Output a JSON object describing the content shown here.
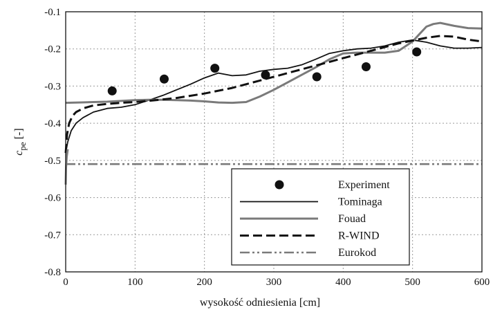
{
  "chart_data": {
    "type": "line",
    "xlabel": "wysokość odniesienia [cm]",
    "ylabel_main": "c",
    "ylabel_sub": "pe",
    "ylabel_unit": " [-]",
    "xlim": [
      0,
      600
    ],
    "ylim": [
      -0.8,
      -0.1
    ],
    "xticks": [
      0,
      100,
      200,
      300,
      400,
      500,
      600
    ],
    "yticks": [
      -0.8,
      -0.7,
      -0.6,
      -0.5,
      -0.4,
      -0.3,
      -0.2,
      -0.1
    ],
    "grid": true,
    "legend_position": "bottom-right",
    "series": [
      {
        "name": "Experiment",
        "kind": "scatter",
        "color": "#111111",
        "x": [
          67,
          142,
          215,
          288,
          362,
          433,
          506
        ],
        "y": [
          -0.313,
          -0.281,
          -0.252,
          -0.27,
          -0.275,
          -0.248,
          -0.208
        ]
      },
      {
        "name": "Tominaga",
        "kind": "line",
        "style": "solid",
        "color": "#111111",
        "width": 1.8,
        "x": [
          0,
          3,
          8,
          15,
          25,
          40,
          60,
          80,
          100,
          120,
          140,
          160,
          180,
          200,
          220,
          240,
          260,
          280,
          300,
          320,
          340,
          360,
          380,
          400,
          420,
          440,
          460,
          480,
          500,
          520,
          540,
          560,
          580,
          600
        ],
        "y": [
          -0.48,
          -0.45,
          -0.42,
          -0.4,
          -0.385,
          -0.37,
          -0.36,
          -0.357,
          -0.35,
          -0.338,
          -0.325,
          -0.31,
          -0.295,
          -0.278,
          -0.265,
          -0.272,
          -0.27,
          -0.26,
          -0.255,
          -0.252,
          -0.243,
          -0.228,
          -0.212,
          -0.205,
          -0.2,
          -0.198,
          -0.192,
          -0.182,
          -0.176,
          -0.182,
          -0.192,
          -0.198,
          -0.198,
          -0.196
        ]
      },
      {
        "name": "Fouad",
        "kind": "line",
        "style": "solid",
        "color": "#7a7a7a",
        "width": 3,
        "x": [
          0,
          20,
          40,
          60,
          80,
          100,
          120,
          140,
          160,
          180,
          200,
          220,
          240,
          260,
          280,
          300,
          320,
          340,
          360,
          380,
          400,
          420,
          440,
          460,
          480,
          500,
          510,
          520,
          530,
          540,
          560,
          580,
          600
        ],
        "y": [
          -0.345,
          -0.344,
          -0.343,
          -0.342,
          -0.34,
          -0.338,
          -0.337,
          -0.337,
          -0.338,
          -0.339,
          -0.341,
          -0.344,
          -0.345,
          -0.343,
          -0.328,
          -0.31,
          -0.29,
          -0.27,
          -0.25,
          -0.228,
          -0.212,
          -0.21,
          -0.21,
          -0.21,
          -0.205,
          -0.18,
          -0.16,
          -0.14,
          -0.133,
          -0.13,
          -0.138,
          -0.144,
          -0.145
        ]
      },
      {
        "name": "R-WIND",
        "kind": "line",
        "style": "dashed",
        "color": "#111111",
        "width": 3,
        "x": [
          0,
          2,
          5,
          10,
          15,
          25,
          40,
          60,
          80,
          100,
          130,
          160,
          200,
          240,
          280,
          320,
          360,
          400,
          440,
          480,
          520,
          540,
          560,
          580,
          600
        ],
        "y": [
          -0.48,
          -0.43,
          -0.4,
          -0.38,
          -0.37,
          -0.36,
          -0.352,
          -0.348,
          -0.345,
          -0.343,
          -0.338,
          -0.332,
          -0.32,
          -0.305,
          -0.285,
          -0.265,
          -0.245,
          -0.225,
          -0.205,
          -0.185,
          -0.17,
          -0.165,
          -0.167,
          -0.175,
          -0.18
        ]
      },
      {
        "name": "Eurokod",
        "kind": "line",
        "style": "dashdotdot",
        "color": "#7a7a7a",
        "width": 2.6,
        "x": [
          0,
          600
        ],
        "y": [
          -0.51,
          -0.51
        ]
      },
      {
        "name": "",
        "kind": "line",
        "style": "solid",
        "color": "#7a7a7a",
        "width": 3,
        "x": [
          0,
          0.5,
          1.5,
          3
        ],
        "y": [
          -0.565,
          -0.52,
          -0.49,
          -0.47
        ]
      }
    ]
  }
}
